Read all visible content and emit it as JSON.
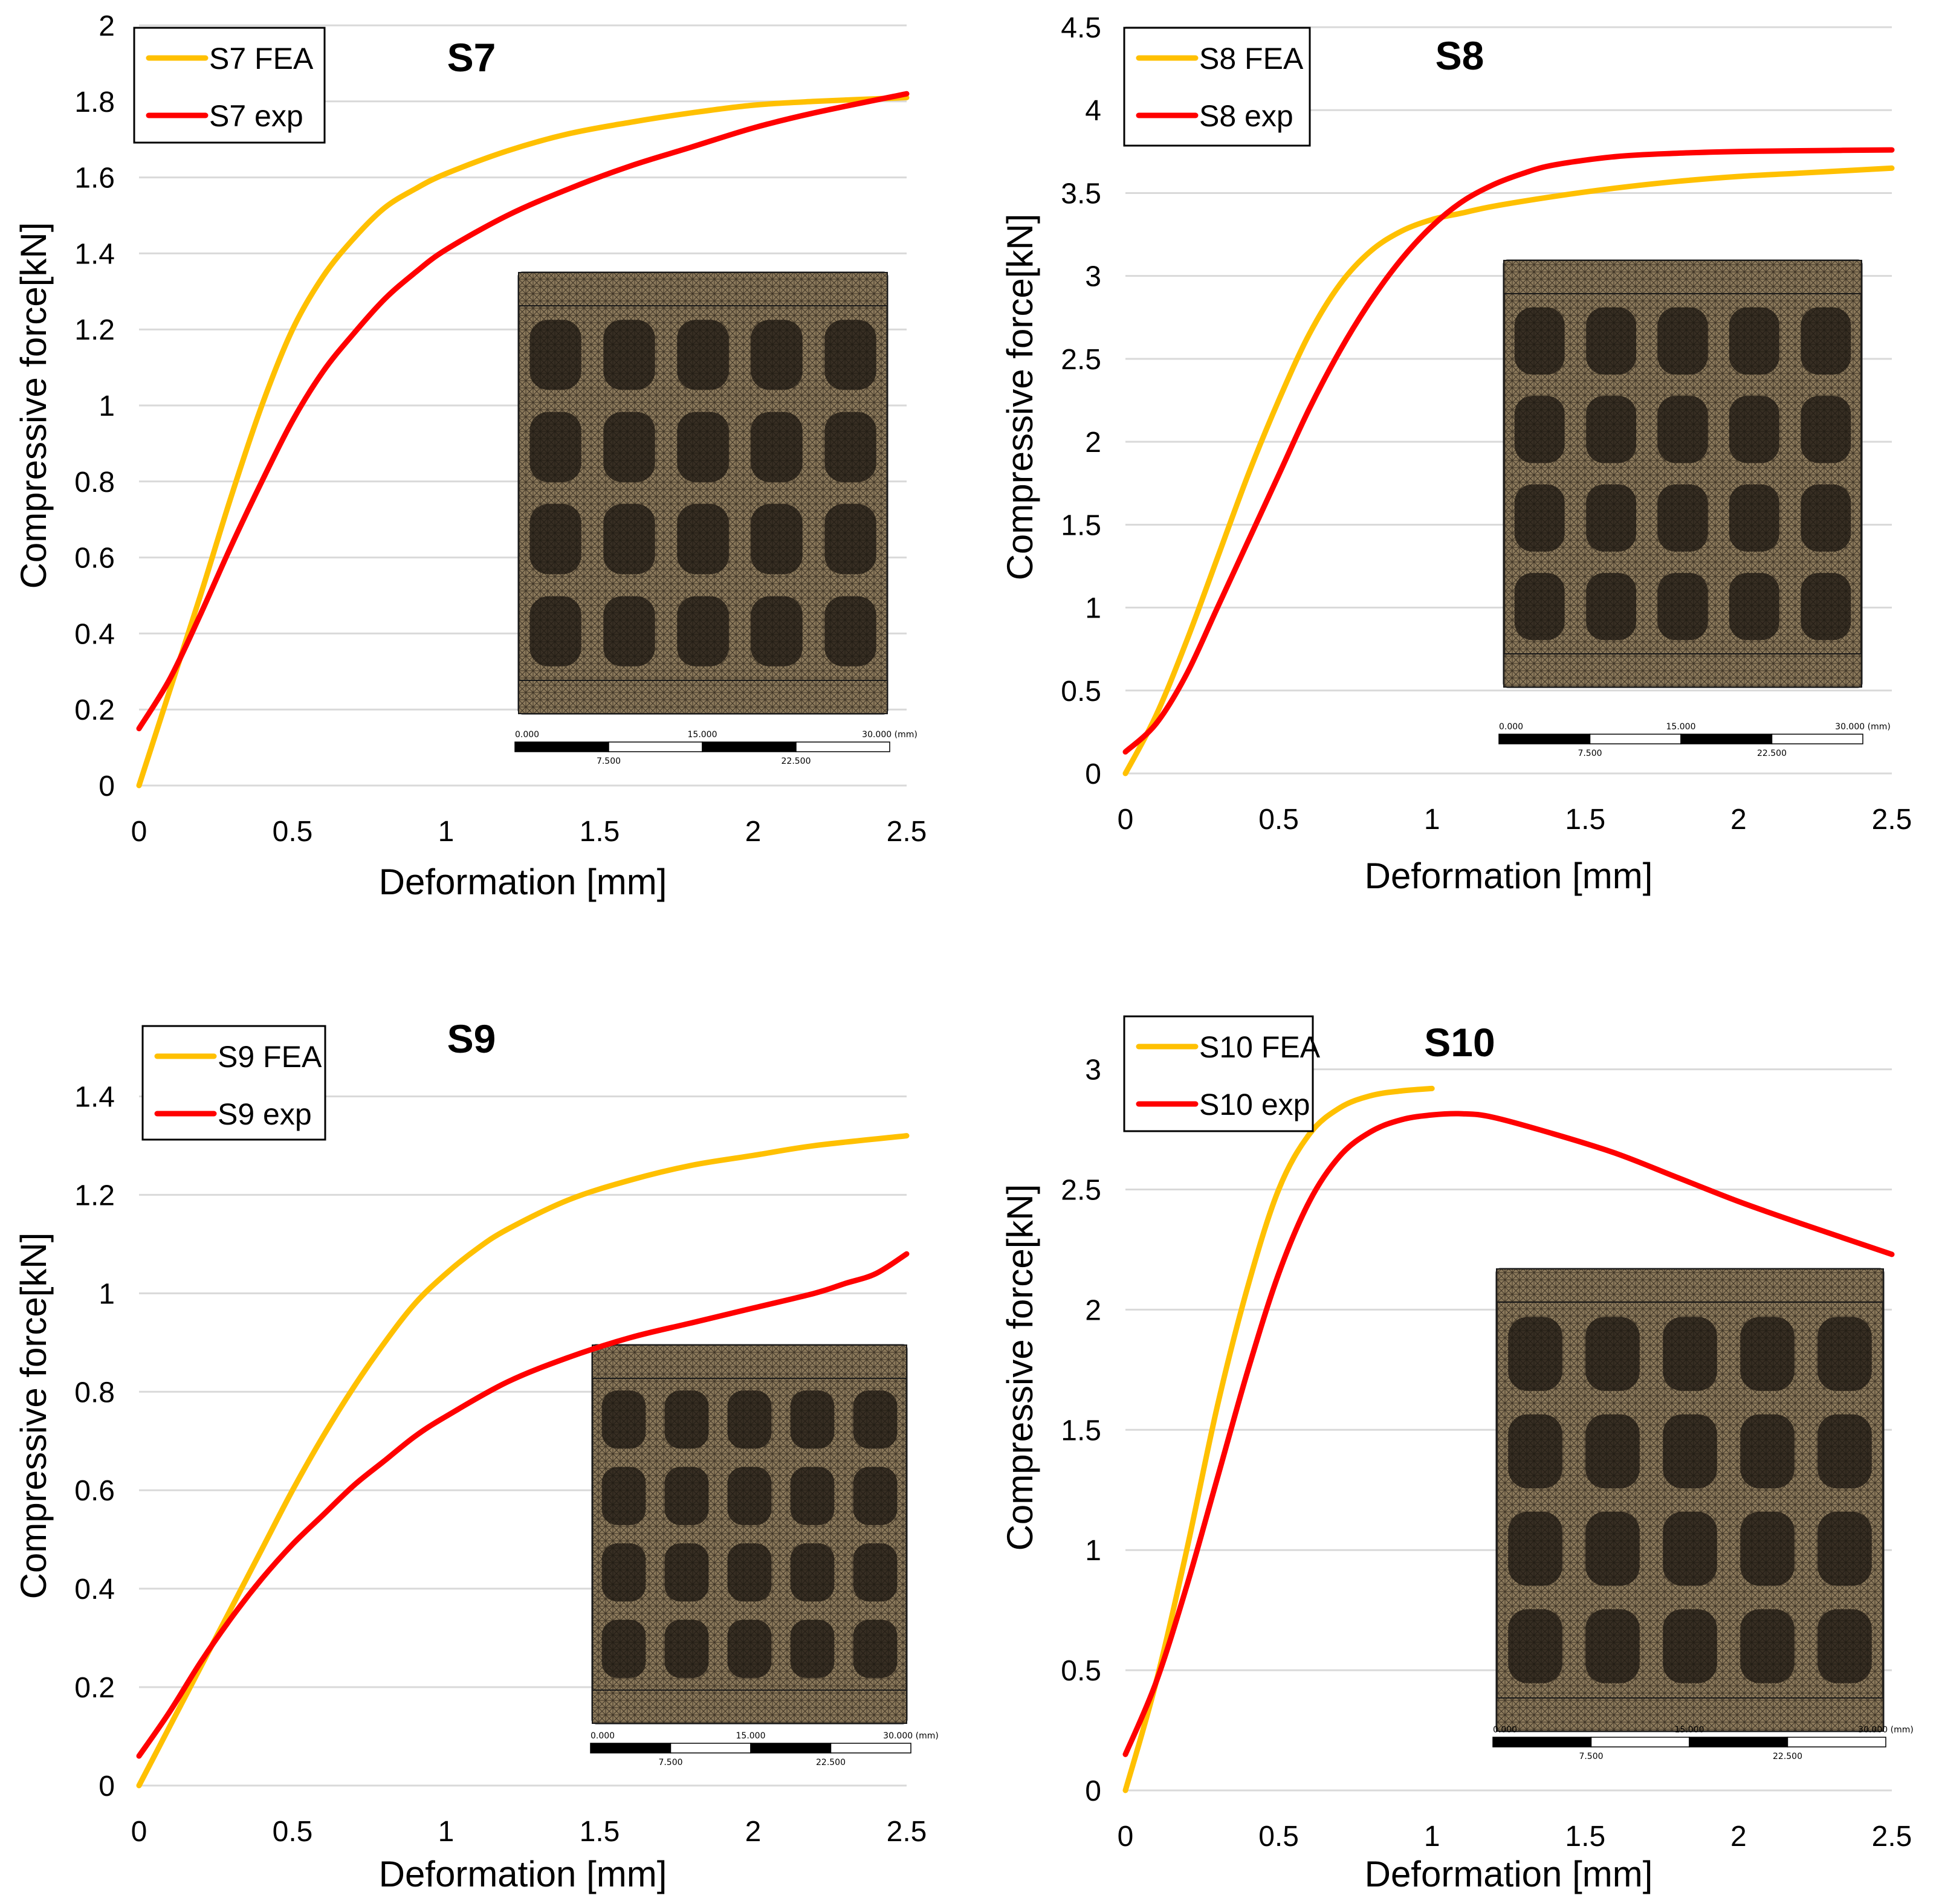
{
  "chart_data": [
    {
      "type": "line",
      "title": "S7",
      "xlabel": "Deformation [mm]",
      "ylabel": "Compressive force[kN]",
      "xlim": [
        0,
        2.5
      ],
      "ylim": [
        0,
        2
      ],
      "xticks": [
        0,
        0.5,
        1,
        1.5,
        2,
        2.5
      ],
      "xtick_labels": [
        "0",
        "0.5",
        "1",
        "1.5",
        "2",
        "2.5"
      ],
      "yticks": [
        0,
        0.2,
        0.4,
        0.6,
        0.8,
        1,
        1.2,
        1.4,
        1.6,
        1.8,
        2
      ],
      "ytick_labels": [
        "0",
        "0.2",
        "0.4",
        "0.6",
        "0.8",
        "1",
        "1.2",
        "1.4",
        "1.6",
        "1.8",
        "2"
      ],
      "grid": true,
      "legend": "top-left",
      "series": [
        {
          "name": "S7 FEA",
          "color": "#FFC000",
          "x": [
            0,
            0.1,
            0.2,
            0.3,
            0.4,
            0.5,
            0.6,
            0.7,
            0.8,
            0.9,
            1.0,
            1.2,
            1.4,
            1.6,
            1.8,
            2.0,
            2.2,
            2.5
          ],
          "y": [
            0,
            0.25,
            0.5,
            0.76,
            1.0,
            1.2,
            1.34,
            1.44,
            1.52,
            1.57,
            1.61,
            1.67,
            1.715,
            1.745,
            1.77,
            1.79,
            1.8,
            1.81
          ]
        },
        {
          "name": "S7 exp",
          "color": "#FF0000",
          "x": [
            0,
            0.1,
            0.2,
            0.3,
            0.4,
            0.5,
            0.6,
            0.7,
            0.8,
            0.9,
            1.0,
            1.2,
            1.4,
            1.6,
            1.8,
            2.0,
            2.2,
            2.5
          ],
          "y": [
            0.15,
            0.28,
            0.45,
            0.63,
            0.8,
            0.96,
            1.09,
            1.19,
            1.28,
            1.35,
            1.41,
            1.5,
            1.57,
            1.63,
            1.68,
            1.73,
            1.77,
            1.82
          ]
        }
      ],
      "inset_scale": {
        "labels_top": [
          "0.000",
          "15.000",
          "30.000 (mm)"
        ],
        "labels_bottom": [
          "7.500",
          "22.500"
        ]
      }
    },
    {
      "type": "line",
      "title": "S8",
      "xlabel": "Deformation [mm]",
      "ylabel": "Compressive force[kN]",
      "xlim": [
        0,
        2.5
      ],
      "ylim": [
        0,
        4.5
      ],
      "xticks": [
        0,
        0.5,
        1,
        1.5,
        2,
        2.5
      ],
      "xtick_labels": [
        "0",
        "0.5",
        "1",
        "1.5",
        "2",
        "2.5"
      ],
      "yticks": [
        0,
        0.5,
        1,
        1.5,
        2,
        2.5,
        3,
        3.5,
        4,
        4.5
      ],
      "ytick_labels": [
        "0",
        "0.5",
        "1",
        "1.5",
        "2",
        "2.5",
        "3",
        "3.5",
        "4",
        "4.5"
      ],
      "grid": true,
      "legend": "top-left",
      "series": [
        {
          "name": "S8 FEA",
          "color": "#FFC000",
          "x": [
            0,
            0.1,
            0.2,
            0.3,
            0.4,
            0.5,
            0.6,
            0.7,
            0.8,
            0.9,
            1.0,
            1.1,
            1.2,
            1.4,
            1.6,
            1.8,
            2.0,
            2.2,
            2.5
          ],
          "y": [
            0,
            0.35,
            0.8,
            1.3,
            1.8,
            2.25,
            2.65,
            2.95,
            3.15,
            3.27,
            3.34,
            3.38,
            3.42,
            3.48,
            3.53,
            3.57,
            3.6,
            3.62,
            3.65
          ]
        },
        {
          "name": "S8 exp",
          "color": "#FF0000",
          "x": [
            0,
            0.1,
            0.2,
            0.3,
            0.4,
            0.5,
            0.6,
            0.7,
            0.8,
            0.9,
            1.0,
            1.1,
            1.2,
            1.3,
            1.4,
            1.6,
            1.8,
            2.0,
            2.2,
            2.5
          ],
          "y": [
            0.13,
            0.3,
            0.6,
            1.0,
            1.4,
            1.8,
            2.2,
            2.55,
            2.85,
            3.1,
            3.3,
            3.45,
            3.55,
            3.62,
            3.67,
            3.72,
            3.74,
            3.75,
            3.755,
            3.76
          ]
        }
      ],
      "inset_scale": {
        "labels_top": [
          "0.000",
          "15.000",
          "30.000 (mm)"
        ],
        "labels_bottom": [
          "7.500",
          "22.500"
        ]
      }
    },
    {
      "type": "line",
      "title": "S9",
      "xlabel": "Deformation [mm]",
      "ylabel": "Compressive force[kN]",
      "xlim": [
        0,
        2.5
      ],
      "ylim": [
        0,
        1.5
      ],
      "xticks": [
        0,
        0.5,
        1,
        1.5,
        2,
        2.5
      ],
      "xtick_labels": [
        "0",
        "0.5",
        "1",
        "1.5",
        "2",
        "2.5"
      ],
      "yticks": [
        0,
        0.2,
        0.4,
        0.6,
        0.8,
        1,
        1.2,
        1.4
      ],
      "ytick_labels": [
        "0",
        "0.2",
        "0.4",
        "0.6",
        "0.8",
        "1",
        "1.2",
        "1.4"
      ],
      "grid": true,
      "legend": "top-left",
      "series": [
        {
          "name": "S9 FEA",
          "color": "#FFC000",
          "x": [
            0,
            0.1,
            0.2,
            0.3,
            0.4,
            0.5,
            0.6,
            0.7,
            0.8,
            0.9,
            1.0,
            1.1,
            1.2,
            1.4,
            1.6,
            1.8,
            2.0,
            2.2,
            2.5
          ],
          "y": [
            0,
            0.12,
            0.24,
            0.36,
            0.48,
            0.6,
            0.71,
            0.81,
            0.9,
            0.98,
            1.04,
            1.09,
            1.13,
            1.19,
            1.23,
            1.26,
            1.28,
            1.3,
            1.32
          ]
        },
        {
          "name": "S9 exp",
          "color": "#FF0000",
          "x": [
            0,
            0.1,
            0.2,
            0.3,
            0.4,
            0.5,
            0.6,
            0.7,
            0.8,
            0.9,
            1.0,
            1.2,
            1.4,
            1.6,
            1.8,
            2.0,
            2.2,
            2.3,
            2.4,
            2.5
          ],
          "y": [
            0.06,
            0.15,
            0.25,
            0.34,
            0.42,
            0.49,
            0.55,
            0.61,
            0.66,
            0.71,
            0.75,
            0.82,
            0.87,
            0.91,
            0.94,
            0.97,
            1.0,
            1.02,
            1.04,
            1.08
          ]
        }
      ],
      "inset_scale": {
        "labels_top": [
          "0.000",
          "15.000",
          "30.000 (mm)"
        ],
        "labels_bottom": [
          "7.500",
          "22.500"
        ]
      }
    },
    {
      "type": "line",
      "title": "S10",
      "xlabel": "Deformation [mm]",
      "ylabel": "Compressive force[kN]",
      "xlim": [
        0,
        2.5
      ],
      "ylim": [
        0,
        3.2
      ],
      "xticks": [
        0,
        0.5,
        1,
        1.5,
        2,
        2.5
      ],
      "xtick_labels": [
        "0",
        "0.5",
        "1",
        "1.5",
        "2",
        "2.5"
      ],
      "yticks": [
        0,
        0.5,
        1,
        1.5,
        2,
        2.5,
        3
      ],
      "ytick_labels": [
        "0",
        "0.5",
        "1",
        "1.5",
        "2",
        "2.5",
        "3"
      ],
      "grid": true,
      "legend": "top-left",
      "series": [
        {
          "name": "S10 FEA",
          "color": "#FFC000",
          "x": [
            0,
            0.1,
            0.2,
            0.3,
            0.4,
            0.5,
            0.6,
            0.7,
            0.8,
            0.9,
            1.0
          ],
          "y": [
            0,
            0.45,
            1.0,
            1.6,
            2.1,
            2.5,
            2.73,
            2.84,
            2.89,
            2.91,
            2.92
          ]
        },
        {
          "name": "S10 exp",
          "color": "#FF0000",
          "x": [
            0,
            0.1,
            0.2,
            0.3,
            0.4,
            0.5,
            0.6,
            0.7,
            0.8,
            0.9,
            1.0,
            1.1,
            1.2,
            1.4,
            1.6,
            1.8,
            2.0,
            2.2,
            2.5
          ],
          "y": [
            0.15,
            0.45,
            0.85,
            1.3,
            1.75,
            2.15,
            2.45,
            2.64,
            2.74,
            2.79,
            2.81,
            2.815,
            2.8,
            2.73,
            2.65,
            2.55,
            2.45,
            2.36,
            2.23
          ]
        }
      ],
      "inset_scale": {
        "labels_top": [
          "0.000",
          "15.000",
          "30.000 (mm)"
        ],
        "labels_bottom": [
          "7.500",
          "22.500"
        ]
      }
    }
  ]
}
